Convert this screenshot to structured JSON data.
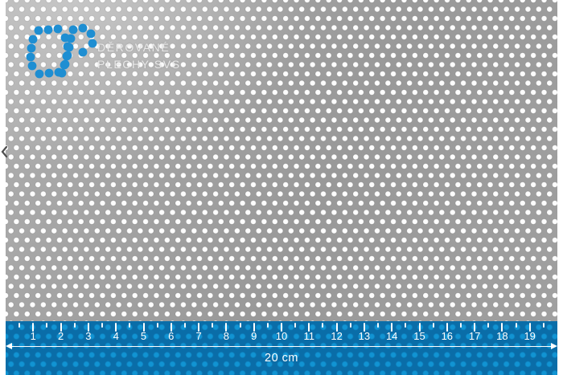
{
  "photo": {
    "alt": "Perforated sheet with round holes in staggered rows"
  },
  "logo": {
    "line1": "DĚROVANÉ",
    "line2": "PLECHY SVS",
    "dot_radius": 5.4,
    "dots": [
      [
        48,
        38
      ],
      [
        60,
        37
      ],
      [
        72,
        36
      ],
      [
        41,
        49
      ],
      [
        81,
        47
      ],
      [
        39,
        60
      ],
      [
        84,
        58
      ],
      [
        38,
        71
      ],
      [
        84,
        69
      ],
      [
        40,
        82
      ],
      [
        81,
        80
      ],
      [
        49,
        92
      ],
      [
        61,
        91
      ],
      [
        73,
        90
      ],
      [
        91,
        37
      ],
      [
        103,
        35
      ],
      [
        113,
        42
      ],
      [
        115,
        54
      ],
      [
        103,
        65
      ],
      [
        88,
        48
      ],
      [
        86,
        59
      ],
      [
        83,
        70
      ],
      [
        80,
        81
      ],
      [
        77,
        91
      ]
    ]
  },
  "ruler": {
    "unit_label": "20 cm",
    "cm_total": 20,
    "numbers": [
      "1",
      "2",
      "3",
      "4",
      "5",
      "6",
      "7",
      "8",
      "9",
      "10",
      "11",
      "12",
      "13",
      "14",
      "15",
      "16",
      "17",
      "18",
      "19"
    ]
  },
  "nav": {
    "prev_icon": "chevron-left"
  },
  "colors": {
    "logo_blue": "#1e8ed2",
    "logo_text": "#e9e9e9",
    "ruler_band": "#0a6da8",
    "ruler_hole": "#1194d3",
    "ruler_white": "#ffffff",
    "sheet_light": "#c6c6c6",
    "sheet_mid": "#b0b0b0",
    "sheet_dark": "#999999",
    "hole_white": "#fdfdfd",
    "chevron_gray": "#4e4e4e"
  }
}
